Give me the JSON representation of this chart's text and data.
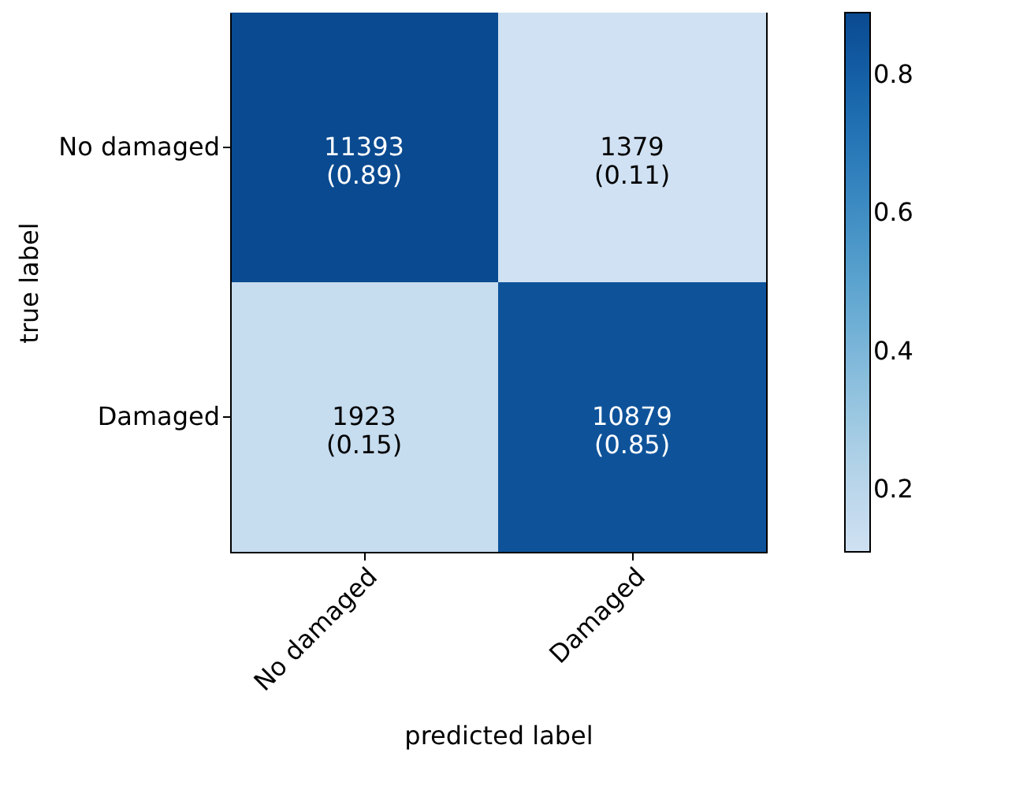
{
  "chart_data": {
    "type": "heatmap",
    "xlabel": "predicted label",
    "ylabel": "true label",
    "categories": [
      "No damaged",
      "Damaged"
    ],
    "y_categories": [
      "No damaged",
      "Damaged"
    ],
    "cells": [
      [
        0.89,
        0.11
      ],
      [
        0.15,
        0.85
      ]
    ],
    "cell_labels": [
      [
        "11393\n(0.89)",
        "1379\n(0.11)"
      ],
      [
        "1923\n(0.15)",
        "10879\n(0.85)"
      ]
    ],
    "clim": [
      0.11,
      0.89
    ],
    "cticks": [
      0.2,
      0.4,
      0.6,
      0.8
    ]
  }
}
